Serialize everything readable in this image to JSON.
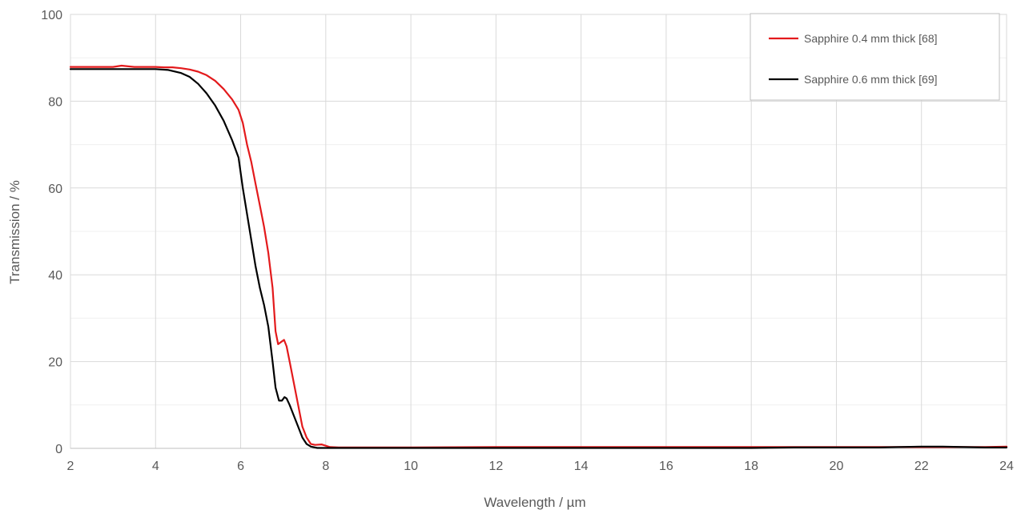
{
  "chart_data": {
    "type": "line",
    "xlabel": "Wavelength / µm",
    "ylabel": "Transmission / %",
    "xlim": [
      2,
      24
    ],
    "ylim": [
      0,
      100
    ],
    "x_ticks": [
      2,
      4,
      6,
      8,
      10,
      12,
      14,
      16,
      18,
      20,
      22,
      24
    ],
    "y_ticks": [
      0,
      20,
      40,
      60,
      80,
      100
    ],
    "grid": {
      "major": true,
      "minor_y": true,
      "minor_x": false
    },
    "legend_position": "top-right",
    "series": [
      {
        "name": "Sapphire 0.4 mm thick [68]",
        "color": "#e31a1c",
        "x": [
          2.0,
          2.5,
          3.0,
          3.2,
          3.5,
          4.0,
          4.2,
          4.4,
          4.6,
          4.8,
          5.0,
          5.2,
          5.4,
          5.6,
          5.8,
          5.95,
          6.05,
          6.15,
          6.25,
          6.35,
          6.45,
          6.55,
          6.65,
          6.75,
          6.82,
          6.88,
          6.95,
          7.02,
          7.08,
          7.15,
          7.25,
          7.35,
          7.45,
          7.55,
          7.65,
          7.75,
          7.9,
          8.1,
          8.3,
          9.0,
          10.0,
          12.0,
          14.0,
          16.0,
          18.0,
          20.0,
          22.0,
          23.0,
          23.5,
          24.0
        ],
        "y": [
          87.9,
          87.9,
          87.9,
          88.2,
          87.9,
          87.9,
          87.8,
          87.8,
          87.6,
          87.3,
          86.8,
          86.0,
          84.7,
          82.8,
          80.4,
          78.0,
          75.0,
          70.0,
          66.0,
          61.0,
          56.0,
          51.0,
          45.0,
          37.0,
          27.0,
          24.0,
          24.5,
          25.0,
          23.5,
          20.0,
          15.0,
          10.0,
          5.0,
          2.5,
          1.0,
          0.8,
          0.9,
          0.3,
          0.2,
          0.2,
          0.2,
          0.3,
          0.3,
          0.3,
          0.3,
          0.3,
          0.3,
          0.3,
          0.3,
          0.4
        ]
      },
      {
        "name": "Sapphire 0.6 mm thick [69]",
        "color": "#000000",
        "x": [
          2.0,
          2.5,
          3.0,
          3.5,
          4.0,
          4.3,
          4.6,
          4.8,
          5.0,
          5.2,
          5.4,
          5.6,
          5.8,
          5.95,
          6.05,
          6.15,
          6.25,
          6.35,
          6.45,
          6.55,
          6.65,
          6.75,
          6.82,
          6.9,
          6.97,
          7.03,
          7.08,
          7.15,
          7.25,
          7.35,
          7.45,
          7.55,
          7.65,
          7.8,
          8.0,
          9.0,
          10.0,
          12.0,
          14.0,
          16.0,
          18.0,
          19.0,
          20.0,
          21.0,
          22.0,
          22.5,
          23.0,
          23.5,
          24.0
        ],
        "y": [
          87.4,
          87.4,
          87.4,
          87.4,
          87.4,
          87.2,
          86.5,
          85.6,
          84.0,
          81.8,
          79.0,
          75.5,
          71.0,
          67.0,
          60.0,
          54.0,
          48.0,
          42.0,
          37.0,
          33.0,
          28.0,
          20.0,
          14.0,
          11.0,
          11.0,
          11.8,
          11.5,
          10.0,
          7.5,
          5.0,
          2.5,
          1.0,
          0.4,
          0.1,
          0.1,
          0.1,
          0.1,
          0.1,
          0.1,
          0.1,
          0.1,
          0.2,
          0.2,
          0.2,
          0.4,
          0.4,
          0.3,
          0.2,
          0.2
        ]
      }
    ]
  }
}
